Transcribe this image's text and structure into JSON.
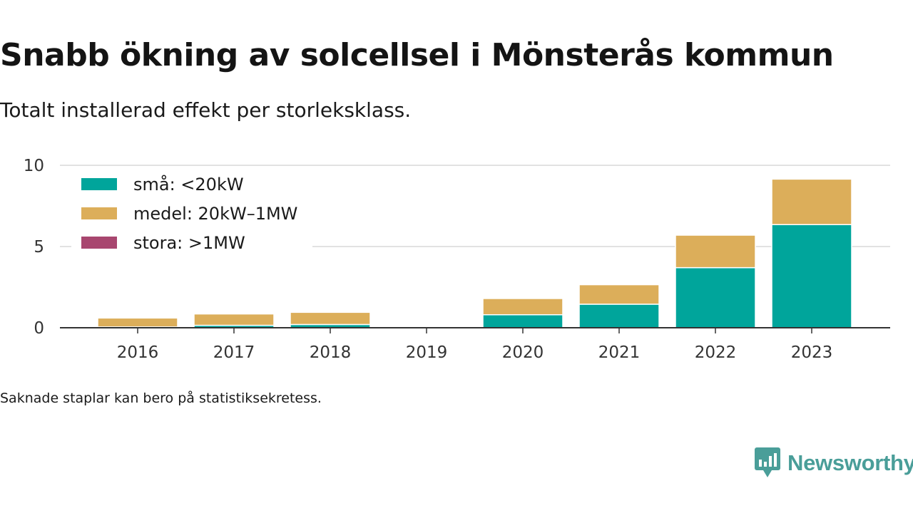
{
  "title": "Snabb ökning av solcellsel i Mönsterås kommun",
  "subtitle": "Totalt installerad effekt per storleksklass.",
  "footnote": "Saknade staplar kan bero på statistiksekretess.",
  "brand": {
    "name": "Newsworthy",
    "icon": "newsworthy-logo-icon"
  },
  "colors": {
    "sma": "#00a59b",
    "medel": "#dcae5a",
    "stora": "#a8466f",
    "grid": "#d9d9d9",
    "axis": "#333333"
  },
  "chart_data": {
    "type": "bar",
    "stacked": true,
    "categories": [
      "2016",
      "2017",
      "2018",
      "2019",
      "2020",
      "2021",
      "2022",
      "2023"
    ],
    "series": [
      {
        "name": "små: <20kW",
        "values": [
          0.05,
          0.15,
          0.2,
          0,
          0.8,
          1.45,
          3.7,
          6.35
        ]
      },
      {
        "name": "medel: 20kW–1MW",
        "values": [
          0.55,
          0.7,
          0.75,
          0,
          1.0,
          1.2,
          2.0,
          2.8
        ]
      },
      {
        "name": "stora: >1MW",
        "values": [
          0,
          0,
          0,
          0,
          0,
          0,
          0,
          0
        ]
      }
    ],
    "y_ticks": [
      0,
      5,
      10
    ],
    "ylim": [
      0,
      10
    ],
    "grid": true,
    "legend_position": "top-left"
  }
}
